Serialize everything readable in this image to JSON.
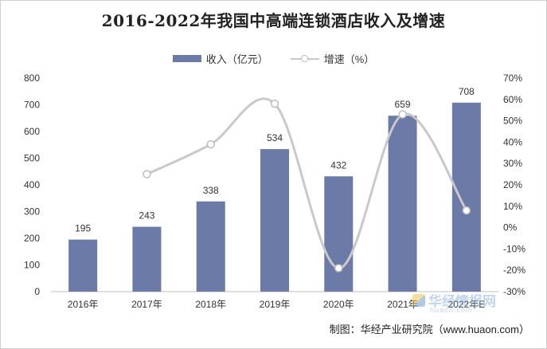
{
  "chart_data": {
    "type": "bar+line",
    "title": "2016-2022年我国中高端连锁酒店收入及增速",
    "categories": [
      "2016年",
      "2017年",
      "2018年",
      "2019年",
      "2020年",
      "2021年",
      "2022年E"
    ],
    "series": [
      {
        "name": "收入（亿元）",
        "type": "bar",
        "axis": "left",
        "color": "#6b7aa6",
        "values": [
          195,
          243,
          338,
          534,
          432,
          659,
          708
        ],
        "labels": [
          "195",
          "243",
          "338",
          "534",
          "432",
          "659",
          "708"
        ]
      },
      {
        "name": "增速（%）",
        "type": "line",
        "axis": "right",
        "color": "#c9c9c9",
        "values": [
          null,
          25,
          39,
          58,
          -19,
          53,
          8
        ]
      }
    ],
    "y_left": {
      "min": 0,
      "max": 800,
      "ticks": [
        "0",
        "100",
        "200",
        "300",
        "400",
        "500",
        "600",
        "700",
        "800"
      ]
    },
    "y_right": {
      "min": -30,
      "max": 70,
      "ticks": [
        "-30%",
        "-20%",
        "-10%",
        "0%",
        "10%",
        "20%",
        "30%",
        "40%",
        "50%",
        "60%",
        "70%"
      ]
    },
    "legend_position": "top-center",
    "grid": false
  },
  "legend": {
    "bar_label": "收入（亿元）",
    "line_label": "增速（%）"
  },
  "source": "制图：华经产业研究院（www.huaon.com）",
  "watermark": {
    "text": "华经情报网",
    "url": "huaon.com"
  }
}
